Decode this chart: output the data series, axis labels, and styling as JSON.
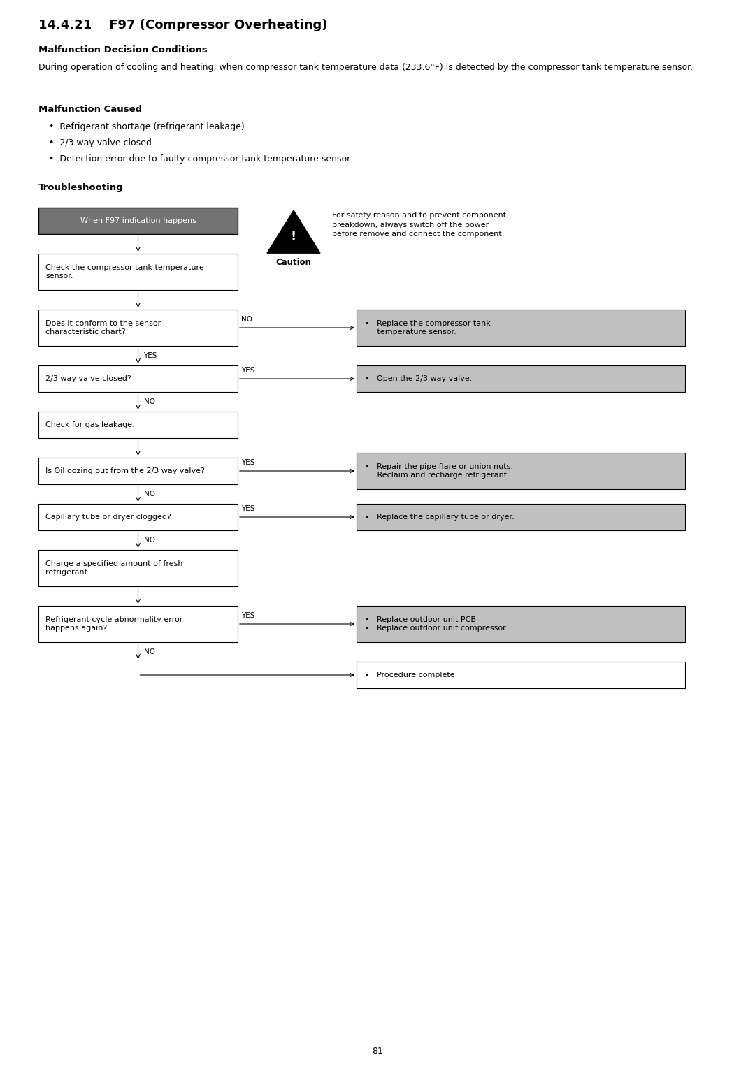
{
  "title": "14.4.21    F97 (Compressor Overheating)",
  "section1_header": "Malfunction Decision Conditions",
  "section1_body": "During operation of cooling and heating, when compressor tank temperature data (233.6°F) is detected by the compressor tank temperature sensor.",
  "section2_header": "Malfunction Caused",
  "section2_bullets": [
    "Refrigerant shortage (refrigerant leakage).",
    "2/3 way valve closed.",
    "Detection error due to faulty compressor tank temperature sensor."
  ],
  "section3_header": "Troubleshooting",
  "caution_text": "For safety reason and to prevent component\nbreakdown, always switch off the power\nbefore remove and connect the component.",
  "page_number": "81",
  "bg_color": "#ffffff",
  "start_box_color": "#737373",
  "start_text_color": "#ffffff",
  "gray_result_color": "#c0c0c0",
  "white_result_color": "#ffffff",
  "box_border": "#000000",
  "text_color": "#000000"
}
